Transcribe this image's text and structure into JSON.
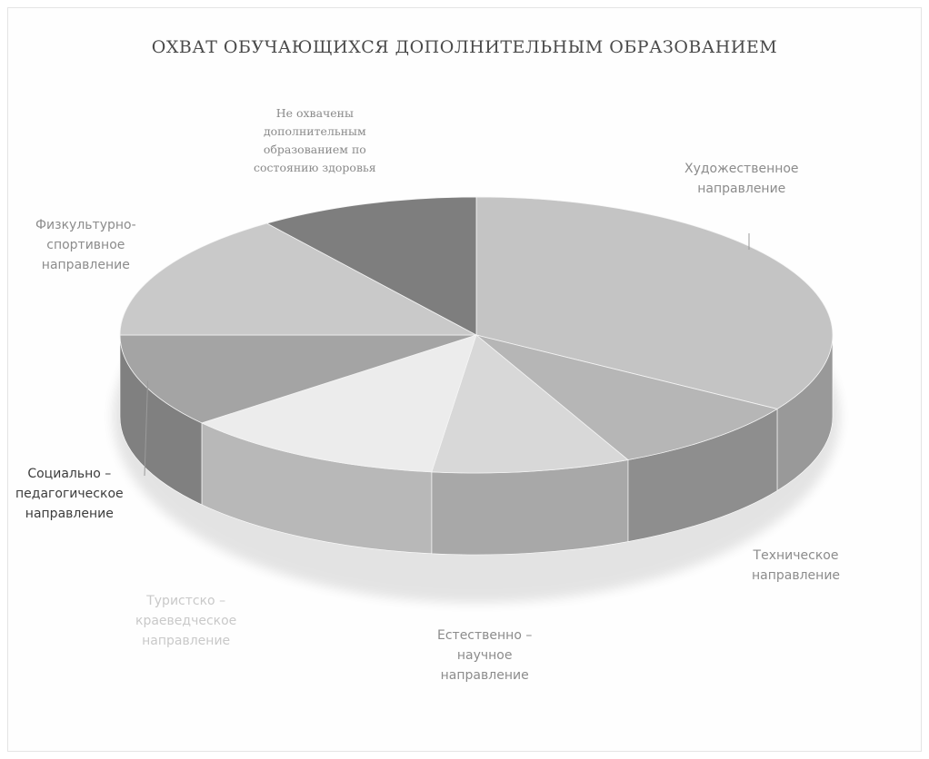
{
  "chart_data": {
    "type": "pie",
    "title": "ОХВАТ ОБУЧАЮЩИХСЯ ДОПОЛНИТЕЛЬНЫМ ОБРАЗОВАНИЕМ",
    "slices": [
      {
        "label": "Художественное\nнаправление",
        "value": 34,
        "color": "#c4c4c4"
      },
      {
        "label": "Техническое\nнаправление",
        "value": 9,
        "color": "#b6b6b6"
      },
      {
        "label": "Естественно –\nнаучное\nнаправление",
        "value": 9,
        "color": "#d8d8d8"
      },
      {
        "label": "Туристско –\nкраеведческое\nнаправление",
        "value": 12,
        "color": "#ececec"
      },
      {
        "label": "Социально –\nпедагогическое\nнаправление",
        "value": 11,
        "color": "#a4a4a4"
      },
      {
        "label": "Физкультурно-\nспортивное\nнаправление",
        "value": 15,
        "color": "#c9c9c9"
      },
      {
        "label": "Не охвачены\nдополнительным\nобразованием по\nсостоянию здоровья",
        "value": 10,
        "color": "#7e7e7e"
      }
    ],
    "start_angle_deg": -90,
    "style": "3d-tilted",
    "legend": "none"
  }
}
